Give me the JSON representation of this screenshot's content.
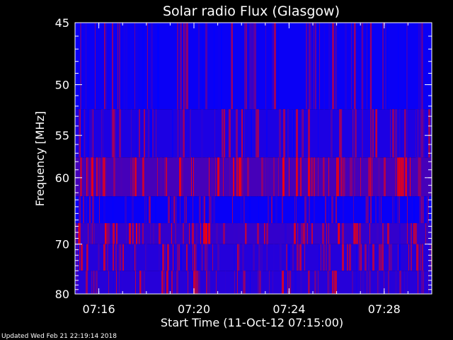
{
  "chart_data": {
    "type": "heatmap",
    "title": "Solar radio Flux (Glasgow)",
    "xlabel": "Start Time (11-Oct-12 07:15:00)",
    "ylabel": "Frequency [MHz]",
    "x_ticks": [
      "07:16",
      "07:20",
      "07:24",
      "07:28"
    ],
    "x_tick_minutes": [
      1,
      5,
      9,
      13
    ],
    "xlim_minutes": [
      0,
      15
    ],
    "y_ticks": [
      "45",
      "50",
      "55",
      "60",
      "70",
      "80"
    ],
    "y_tick_values": [
      45,
      50,
      55,
      60,
      70,
      80
    ],
    "ylim_mhz": [
      45,
      80
    ],
    "y_scale": "reciprocal",
    "colormap": {
      "low": "#0000ff",
      "high": "#ff0000"
    },
    "bands": [
      {
        "from_mhz": 45,
        "to_mhz": 52.3,
        "intensity": 0.08
      },
      {
        "from_mhz": 52.3,
        "to_mhz": 57.5,
        "intensity": 0.22
      },
      {
        "from_mhz": 57.5,
        "to_mhz": 62.5,
        "intensity": 0.55
      },
      {
        "from_mhz": 62.5,
        "to_mhz": 66.5,
        "intensity": 0.06
      },
      {
        "from_mhz": 66.5,
        "to_mhz": 70.0,
        "intensity": 0.4
      },
      {
        "from_mhz": 70.0,
        "to_mhz": 75.0,
        "intensity": 0.28
      },
      {
        "from_mhz": 75.0,
        "to_mhz": 80,
        "intensity": 0.3
      }
    ]
  },
  "footer": {
    "updated": "Updated Wed Feb 21 22:19:14 2018"
  }
}
